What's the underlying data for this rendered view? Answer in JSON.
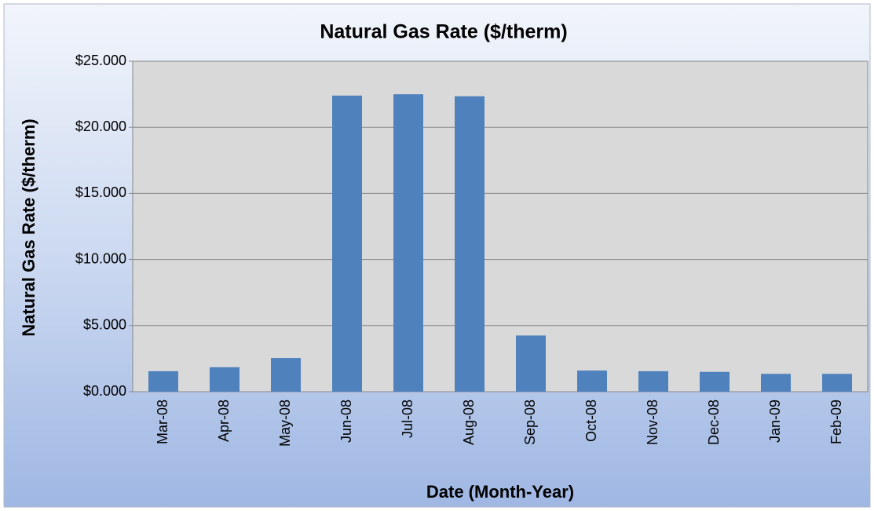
{
  "chart_data": {
    "type": "bar",
    "title": "Natural Gas Rate ($/therm)",
    "x_label": "Date (Month-Year)",
    "y_label": "Natural Gas Rate ($/therm)",
    "categories": [
      "Mar-08",
      "Apr-08",
      "May-08",
      "Jun-08",
      "Jul-08",
      "Aug-08",
      "Sep-08",
      "Oct-08",
      "Nov-08",
      "Dec-08",
      "Jan-09",
      "Feb-09"
    ],
    "values": [
      1.55,
      1.85,
      2.55,
      22.4,
      22.5,
      22.35,
      4.25,
      1.6,
      1.55,
      1.5,
      1.35,
      1.35
    ],
    "color": "#4f81bd",
    "ylim": [
      0,
      25
    ],
    "yticks": [
      {
        "value": 0,
        "label": "$0.000"
      },
      {
        "value": 5,
        "label": "$5.000"
      },
      {
        "value": 10,
        "label": "$10.000"
      },
      {
        "value": 15,
        "label": "$15.000"
      },
      {
        "value": 20,
        "label": "$20.000"
      },
      {
        "value": 25,
        "label": "$25.000"
      }
    ],
    "grid": true
  }
}
